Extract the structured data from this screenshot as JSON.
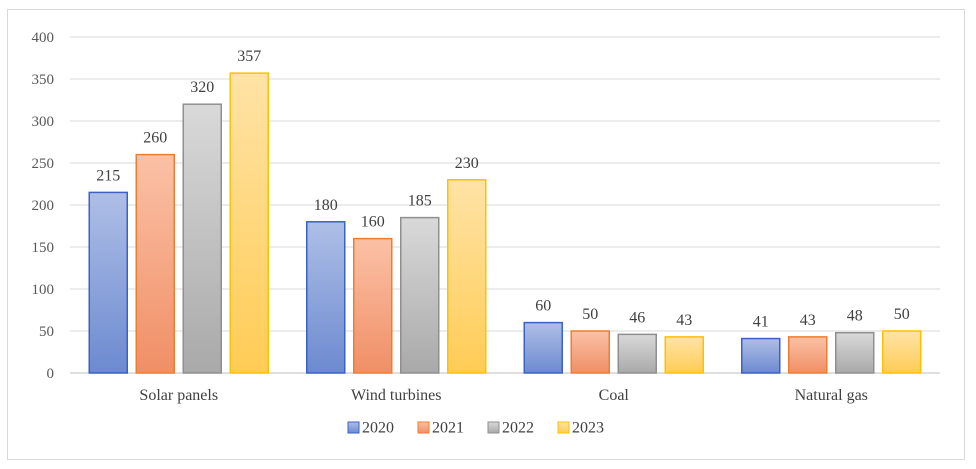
{
  "chart_data": {
    "type": "bar",
    "categories": [
      "Solar panels",
      "Wind turbines",
      "Coal",
      "Natural gas"
    ],
    "series": [
      {
        "name": "2020",
        "values": [
          215,
          180,
          60,
          41
        ]
      },
      {
        "name": "2021",
        "values": [
          260,
          160,
          50,
          43
        ]
      },
      {
        "name": "2022",
        "values": [
          320,
          185,
          46,
          48
        ]
      },
      {
        "name": "2023",
        "values": [
          357,
          230,
          43,
          50
        ]
      }
    ],
    "title": "",
    "xlabel": "",
    "ylabel": "",
    "ylim": [
      0,
      400
    ],
    "yticks": [
      0,
      50,
      100,
      150,
      200,
      250,
      300,
      350,
      400
    ],
    "grid": true,
    "legend": "bottom",
    "data_labels": true,
    "colors": [
      {
        "top": "#aebfe6",
        "bottom": "#6d8ad0",
        "stroke": "#3a62c4"
      },
      {
        "top": "#fbc1a6",
        "bottom": "#f08f66",
        "stroke": "#ed7d31"
      },
      {
        "top": "#d9d9d9",
        "bottom": "#a9a9a9",
        "stroke": "#8f8f8f"
      },
      {
        "top": "#ffe3a6",
        "bottom": "#ffcc55",
        "stroke": "#ffc000"
      }
    ]
  }
}
